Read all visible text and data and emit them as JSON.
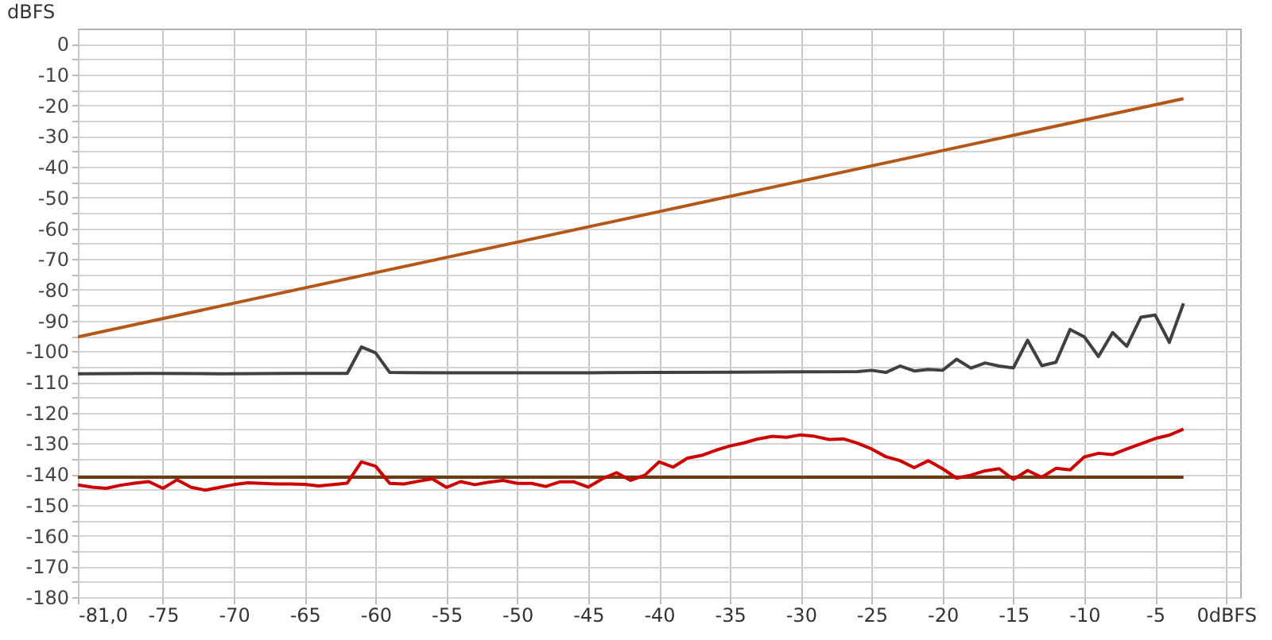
{
  "chart_data": {
    "type": "line",
    "ylabel": "dBFS",
    "xlim": [
      -81,
      1
    ],
    "ylim": [
      -180,
      5
    ],
    "xticks": [
      {
        "value": -81,
        "label": "-81,0"
      },
      -75,
      -70,
      -65,
      -60,
      -55,
      -50,
      -45,
      -40,
      -35,
      -30,
      -25,
      -20,
      -15,
      -10,
      -5,
      {
        "value": 0,
        "label": "0dBFS"
      }
    ],
    "yticks": [
      0,
      {
        "value": -5,
        "label": null
      },
      -10,
      {
        "value": -15,
        "label": null
      },
      -20,
      {
        "value": -25,
        "label": null
      },
      -30,
      {
        "value": -35,
        "label": null
      },
      -40,
      {
        "value": -45,
        "label": null
      },
      -50,
      {
        "value": -55,
        "label": null
      },
      -60,
      {
        "value": -65,
        "label": null
      },
      -70,
      {
        "value": -75,
        "label": null
      },
      -80,
      {
        "value": -85,
        "label": null
      },
      -90,
      {
        "value": -95,
        "label": null
      },
      -100,
      {
        "value": -105,
        "label": null
      },
      -110,
      {
        "value": -115,
        "label": null
      },
      -120,
      {
        "value": -125,
        "label": null
      },
      -130,
      {
        "value": -135,
        "label": null
      },
      -140,
      {
        "value": -145,
        "label": null
      },
      -150,
      {
        "value": -155,
        "label": null
      },
      -160,
      {
        "value": -165,
        "label": null
      },
      -170,
      {
        "value": -175,
        "label": null
      },
      -180
    ],
    "grid": true,
    "legend": false,
    "series": [
      {
        "color": "#b4581a",
        "x": [
          -81,
          -3
        ],
        "values": [
          -95.3,
          -17.8
        ]
      },
      {
        "color": "#6b3c14",
        "x": [
          -81,
          -3
        ],
        "values": [
          -141,
          -141
        ]
      },
      {
        "color": "#404040",
        "x": [
          -81,
          -76,
          -71,
          -66,
          -62,
          -61,
          -60,
          -59,
          -55,
          -50,
          -45,
          -40,
          -35,
          -30,
          -26,
          -25,
          -24,
          -23,
          -22,
          -21,
          -20,
          -19,
          -18,
          -17,
          -16,
          -15,
          -14,
          -13,
          -12,
          -11,
          -10,
          -9,
          -8,
          -7,
          -6,
          -5,
          -4,
          -3
        ],
        "values": [
          -107.3,
          -107.2,
          -107.3,
          -107.2,
          -107.2,
          -98.6,
          -100.5,
          -106.9,
          -107,
          -107,
          -107,
          -106.9,
          -106.8,
          -106.7,
          -106.6,
          -106.2,
          -106.9,
          -104.8,
          -106.4,
          -105.9,
          -106.2,
          -102.6,
          -105.5,
          -103.8,
          -104.8,
          -105.4,
          -96.4,
          -104.7,
          -103.6,
          -92.9,
          -95.3,
          -101.7,
          -93.9,
          -98.4,
          -88.9,
          -88.2,
          -97.1,
          -84.4
        ]
      },
      {
        "color": "#cc0000",
        "x": [
          -81,
          -80,
          -79,
          -78,
          -77,
          -76,
          -75,
          -74,
          -73,
          -72,
          -71,
          -70,
          -69,
          -68,
          -67,
          -66,
          -65,
          -64,
          -63,
          -62,
          -61,
          -60,
          -59,
          -58,
          -57,
          -56,
          -55,
          -54,
          -53,
          -52,
          -51,
          -50,
          -49,
          -48,
          -47,
          -46,
          -45,
          -44,
          -43,
          -42,
          -41,
          -40,
          -39,
          -38,
          -37,
          -36,
          -35,
          -34,
          -33,
          -32,
          -31,
          -30,
          -29,
          -28,
          -27,
          -26,
          -25,
          -24,
          -23,
          -22,
          -21,
          -20,
          -19,
          -18,
          -17,
          -16,
          -15,
          -14,
          -13,
          -12,
          -11,
          -10,
          -9,
          -8,
          -7,
          -6,
          -5,
          -4,
          -3
        ],
        "values": [
          -143.5,
          -144.2,
          -144.6,
          -143.6,
          -142.9,
          -142.4,
          -144.6,
          -141.8,
          -144.3,
          -145.2,
          -144.3,
          -143.4,
          -142.8,
          -143,
          -143.2,
          -143.2,
          -143.3,
          -143.8,
          -143.4,
          -142.9,
          -136,
          -137.4,
          -143,
          -143.2,
          -142.3,
          -141.5,
          -144.3,
          -142.4,
          -143.4,
          -142.6,
          -142,
          -143,
          -143,
          -144,
          -142.5,
          -142.5,
          -144.2,
          -141.5,
          -139.5,
          -142,
          -140.3,
          -136,
          -137.7,
          -134.8,
          -133.9,
          -132.2,
          -130.8,
          -129.8,
          -128.5,
          -127.7,
          -128,
          -127.2,
          -127.7,
          -128.7,
          -128.5,
          -129.9,
          -131.8,
          -134.3,
          -135.6,
          -137.9,
          -135.6,
          -138.2,
          -141.3,
          -140.3,
          -138.9,
          -138.2,
          -141.7,
          -138.8,
          -141,
          -138.1,
          -138.6,
          -134.4,
          -133.2,
          -133.6,
          -131.8,
          -130.1,
          -128.4,
          -127.3,
          -125.3
        ]
      }
    ]
  }
}
